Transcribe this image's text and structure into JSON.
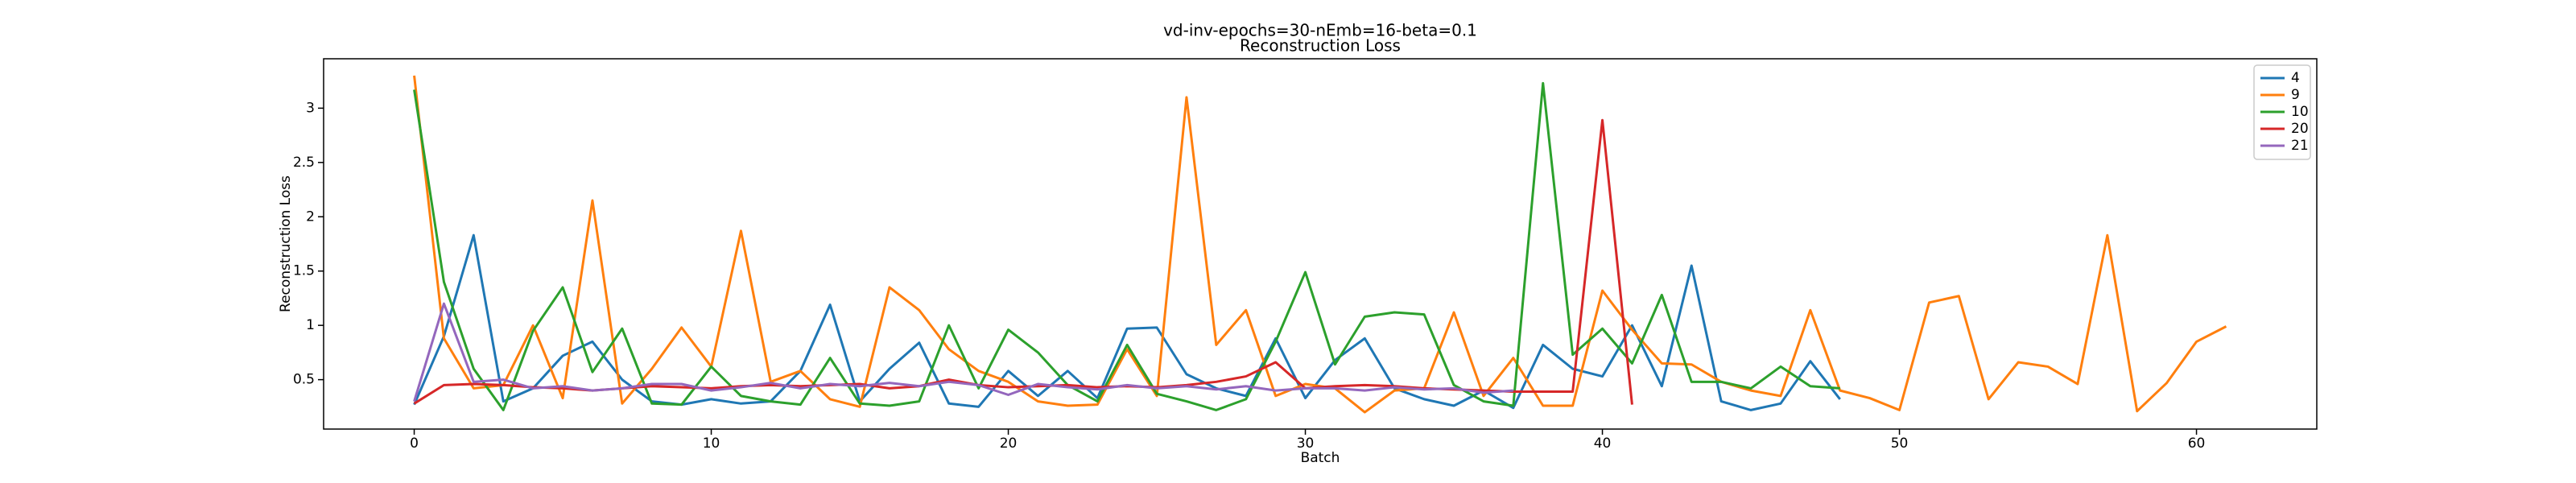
{
  "chart_data": {
    "type": "line",
    "title": "vd-inv-epochs=30-nEmb=16-beta=0.1",
    "subtitle": "Reconstruction Loss",
    "x_label": "Batch",
    "y_label": "Reconstruction Loss",
    "x": [
      0,
      1,
      2,
      3,
      4,
      5,
      6,
      7,
      8,
      9,
      10,
      11,
      12,
      13,
      14,
      15,
      16,
      17,
      18,
      19,
      20,
      21,
      22,
      23,
      24,
      25,
      26,
      27,
      28,
      29,
      30,
      31,
      32,
      33,
      34,
      35,
      36,
      37,
      38,
      39,
      40,
      41,
      42,
      43,
      44,
      45,
      46,
      47,
      48,
      49,
      50,
      51,
      52,
      53,
      54,
      55,
      56,
      57,
      58,
      59,
      60,
      61
    ],
    "series": [
      {
        "name": "4",
        "color": "#1f77b4",
        "values": [
          0.27,
          0.9,
          1.83,
          0.3,
          0.42,
          0.72,
          0.85,
          0.5,
          0.3,
          0.27,
          0.32,
          0.28,
          0.3,
          0.58,
          1.19,
          0.3,
          0.6,
          0.84,
          0.28,
          0.25,
          0.58,
          0.35,
          0.58,
          0.33,
          0.97,
          0.98,
          0.55,
          0.42,
          0.35,
          0.88,
          0.33,
          0.68,
          0.88,
          0.42,
          0.32,
          0.26,
          0.4,
          0.24,
          0.82,
          0.6,
          0.53,
          1.0,
          0.44,
          1.55,
          0.3,
          0.22,
          0.28,
          0.67,
          0.32,
          null,
          null,
          null,
          null,
          null,
          null,
          null,
          null,
          null,
          null,
          null,
          null,
          null
        ]
      },
      {
        "name": "9",
        "color": "#ff7f0e",
        "values": [
          3.3,
          0.88,
          0.42,
          0.45,
          1.0,
          0.33,
          2.15,
          0.28,
          0.6,
          0.98,
          0.62,
          1.87,
          0.48,
          0.58,
          0.32,
          0.25,
          1.35,
          1.14,
          0.78,
          0.58,
          0.48,
          0.3,
          0.26,
          0.27,
          0.78,
          0.35,
          3.1,
          0.82,
          1.14,
          0.35,
          0.46,
          0.42,
          0.2,
          0.4,
          0.42,
          1.12,
          0.35,
          0.7,
          0.26,
          0.26,
          1.32,
          0.96,
          0.65,
          0.64,
          0.48,
          0.4,
          0.35,
          1.14,
          0.4,
          0.33,
          0.22,
          1.21,
          1.27,
          0.32,
          0.66,
          0.62,
          0.46,
          1.83,
          0.21,
          0.47,
          0.85,
          0.99
        ]
      },
      {
        "name": "10",
        "color": "#2ca02c",
        "values": [
          3.17,
          1.4,
          0.6,
          0.22,
          0.95,
          1.35,
          0.57,
          0.97,
          0.28,
          0.27,
          0.62,
          0.35,
          0.3,
          0.27,
          0.7,
          0.28,
          0.26,
          0.3,
          1.0,
          0.42,
          0.96,
          0.75,
          0.45,
          0.3,
          0.82,
          0.37,
          0.3,
          0.22,
          0.32,
          0.85,
          1.49,
          0.64,
          1.08,
          1.12,
          1.1,
          0.45,
          0.3,
          0.26,
          3.23,
          0.73,
          0.97,
          0.65,
          1.28,
          0.48,
          0.48,
          0.42,
          0.62,
          0.44,
          0.42,
          null,
          null,
          null,
          null,
          null,
          null,
          null,
          null,
          null,
          null,
          null,
          null,
          null
        ]
      },
      {
        "name": "20",
        "color": "#d62728",
        "values": [
          0.28,
          0.45,
          0.46,
          0.45,
          0.43,
          0.42,
          0.4,
          0.42,
          0.44,
          0.43,
          0.42,
          0.44,
          0.45,
          0.44,
          0.45,
          0.46,
          0.42,
          0.44,
          0.5,
          0.45,
          0.43,
          0.44,
          0.45,
          0.43,
          0.44,
          0.43,
          0.45,
          0.48,
          0.53,
          0.66,
          0.42,
          0.44,
          0.45,
          0.44,
          0.42,
          0.41,
          0.4,
          0.39,
          0.39,
          0.39,
          2.89,
          0.27,
          null,
          null,
          null,
          null,
          null,
          null,
          null,
          null,
          null,
          null,
          null,
          null,
          null,
          null,
          null,
          null,
          null,
          null,
          null,
          null
        ]
      },
      {
        "name": "21",
        "color": "#9467bd",
        "values": [
          0.3,
          1.2,
          0.48,
          0.5,
          0.42,
          0.44,
          0.4,
          0.42,
          0.46,
          0.46,
          0.4,
          0.43,
          0.47,
          0.42,
          0.46,
          0.44,
          0.47,
          0.44,
          0.48,
          0.45,
          0.36,
          0.46,
          0.43,
          0.41,
          0.45,
          0.42,
          0.44,
          0.41,
          0.44,
          0.4,
          0.42,
          0.42,
          0.4,
          0.43,
          0.41,
          0.42,
          0.38,
          0.4,
          null,
          null,
          null,
          null,
          null,
          null,
          null,
          null,
          null,
          null,
          null,
          null,
          null,
          null,
          null,
          null,
          null,
          null,
          null,
          null,
          null,
          null,
          null,
          null
        ]
      }
    ],
    "xlim": [
      -3.05,
      64.05
    ],
    "xticks": [
      0,
      10,
      20,
      30,
      40,
      50,
      60
    ],
    "ylim": [
      0.045,
      3.455
    ],
    "yticks": [
      0.5,
      1.0,
      1.5,
      2.0,
      2.5,
      3.0
    ],
    "legend": "upper right"
  }
}
